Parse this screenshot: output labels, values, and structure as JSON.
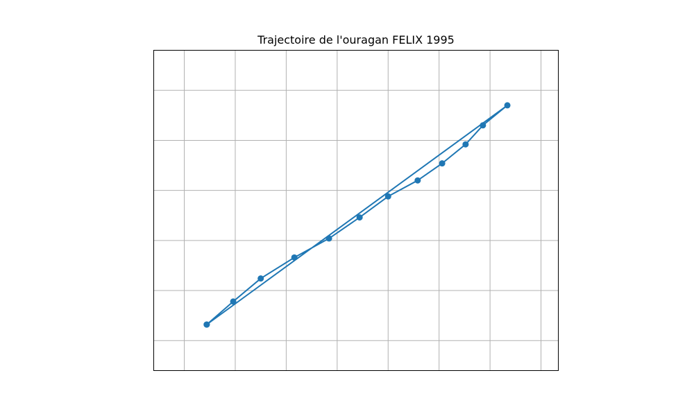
{
  "chart_data": {
    "type": "line",
    "title": "Trajectoire de l'ouragan FELIX 1995",
    "xlabel": "",
    "ylabel": "",
    "xlim": [
      -35.3,
      -75.0
    ],
    "ylim": [
      18.0,
      50.0
    ],
    "grid": true,
    "gridlines_x": [
      -73.3,
      -68.3,
      -63.3,
      -58.3,
      -53.3,
      -48.3,
      -43.3,
      -38.3
    ],
    "gridlines_y": [
      21.0,
      26.0,
      31.0,
      36.0,
      41.0,
      46.0
    ],
    "series": [
      {
        "name": "",
        "color": "#1f77b4",
        "x": [
          -40.5,
          -43.1,
          -45.8,
          -49.1,
          -52.5,
          -55.5,
          -58.3,
          -61.2,
          -63.6,
          -65.9,
          -67.6,
          -70.0,
          -40.5
        ],
        "y": [
          22.6,
          24.9,
          27.2,
          29.3,
          31.2,
          33.3,
          35.4,
          37.0,
          38.7,
          40.6,
          42.5,
          44.5,
          22.6
        ]
      }
    ]
  }
}
